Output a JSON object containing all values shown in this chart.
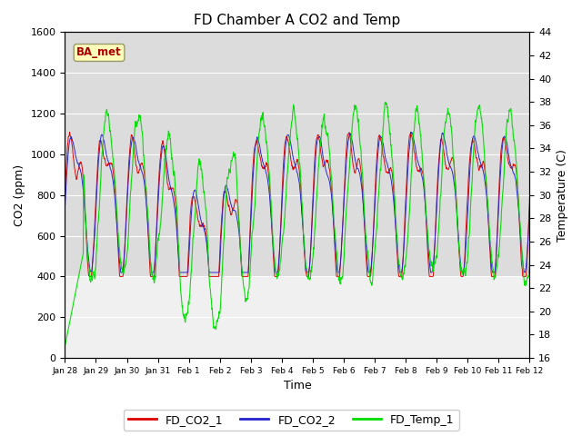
{
  "title": "FD Chamber A CO2 and Temp",
  "xlabel": "Time",
  "ylabel_left": "CO2 (ppm)",
  "ylabel_right": "Temperature (C)",
  "co2_ylim": [
    0,
    1600
  ],
  "temp_ylim": [
    16,
    44
  ],
  "co2_yticks": [
    0,
    200,
    400,
    600,
    800,
    1000,
    1200,
    1400,
    1600
  ],
  "temp_yticks": [
    16,
    18,
    20,
    22,
    24,
    26,
    28,
    30,
    32,
    34,
    36,
    38,
    40,
    42,
    44
  ],
  "color_co2_1": "#dd0000",
  "color_co2_2": "#2222cc",
  "color_temp": "#00dd00",
  "legend_labels": [
    "FD_CO2_1",
    "FD_CO2_2",
    "FD_Temp_1"
  ],
  "annotation_text": "BA_met",
  "annotation_color": "#aa0000",
  "annotation_bg": "#ffffbb",
  "xticklabels": [
    "Jan 28",
    "Jan 29",
    "Jan 30",
    "Jan 31",
    "Feb 1",
    "Feb 2",
    "Feb 3",
    "Feb 4",
    "Feb 5",
    "Feb 6",
    "Feb 7",
    "Feb 8",
    "Feb 9",
    "Feb 10",
    "Feb 11",
    "Feb 12"
  ],
  "num_points": 1500,
  "background_upper": "#dcdcdc",
  "background_lower": "#f0f0f0",
  "plot_bg": "#ffffff",
  "grid_color": "#ffffff",
  "fig_bg": "#ffffff"
}
